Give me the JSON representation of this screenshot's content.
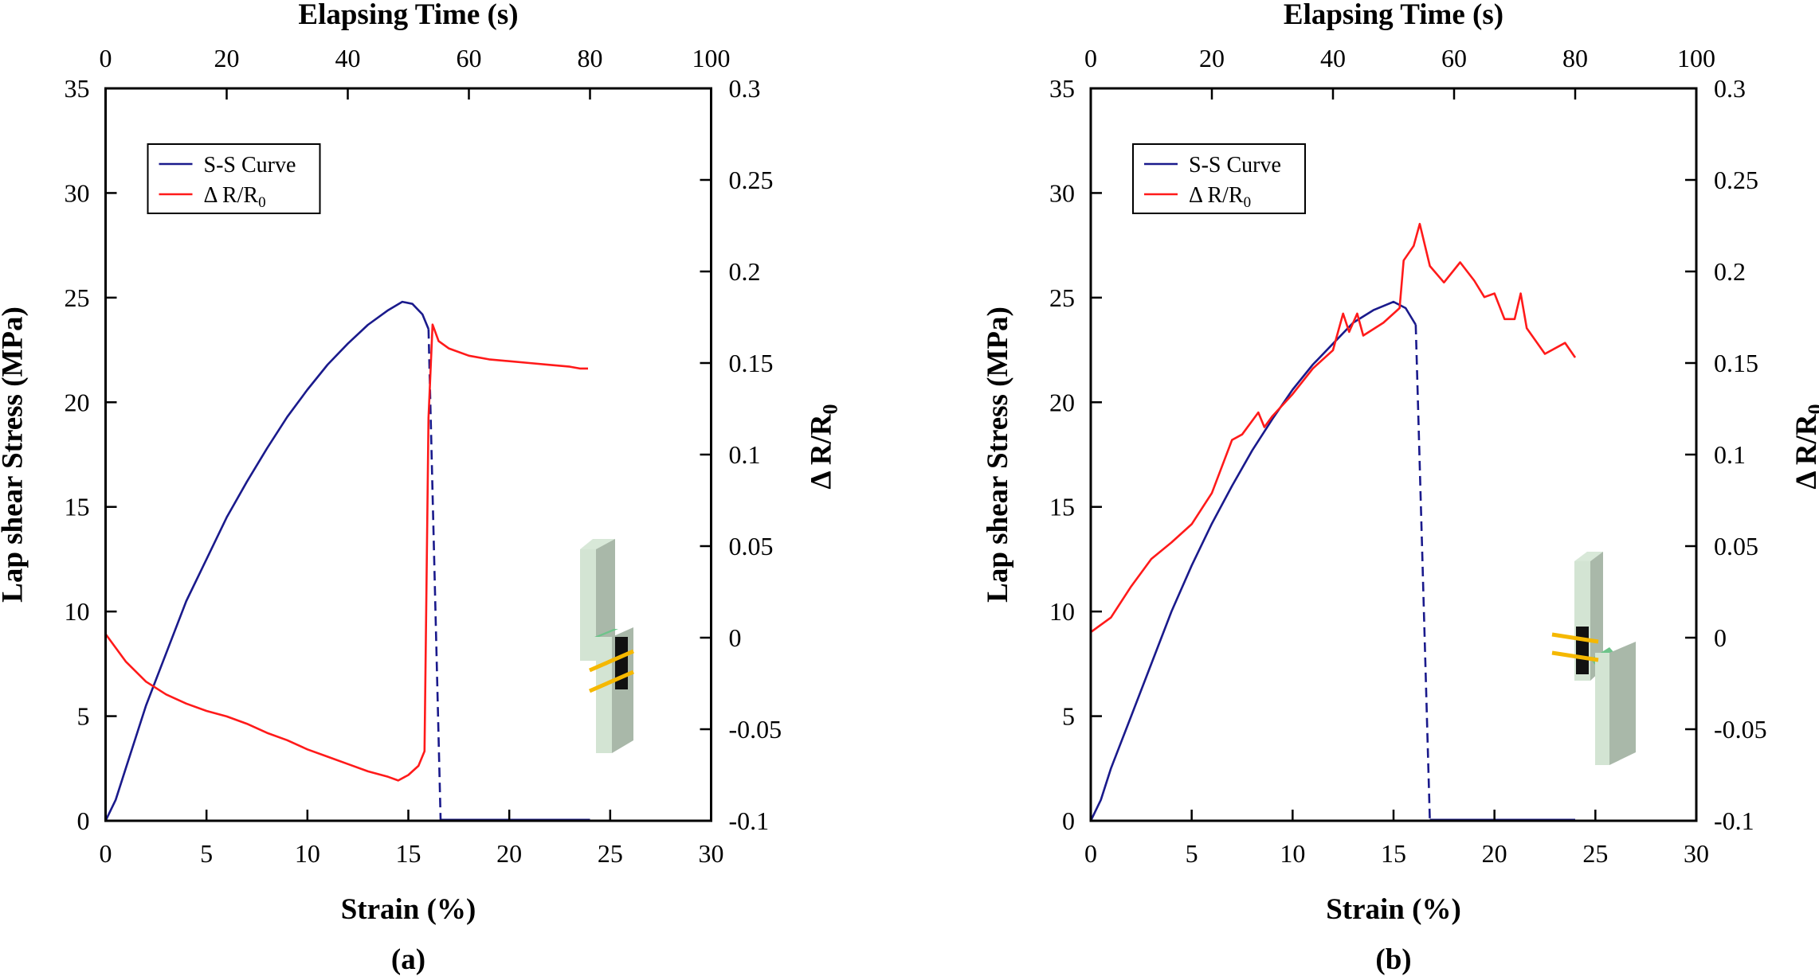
{
  "colors": {
    "ss_curve": "#1a1a8c",
    "resistance": "#ff1a1a",
    "axis": "#000000"
  },
  "chart_data": [
    {
      "type": "line",
      "panel_label": "(a)",
      "xlabel": "Strain (%)",
      "x2label": "Elapsing Time (s)",
      "ylabel": "Lap shear Stress (MPa)",
      "y2label": "Δ R/R",
      "y2label_sub": "0",
      "xlim": [
        0,
        30
      ],
      "x2lim": [
        0,
        100
      ],
      "ylim": [
        0,
        35
      ],
      "y2lim": [
        -0.1,
        0.3
      ],
      "xticks": [
        "0",
        "5",
        "10",
        "15",
        "20",
        "25",
        "30"
      ],
      "x2ticks": [
        "0",
        "20",
        "40",
        "60",
        "80",
        "100"
      ],
      "yticks": [
        "0",
        "5",
        "10",
        "15",
        "20",
        "25",
        "30",
        "35"
      ],
      "y2ticks": [
        "-0.1",
        "-0.05",
        "0",
        "0.05",
        "0.1",
        "0.15",
        "0.2",
        "0.25",
        "0.3"
      ],
      "legend": {
        "placement": "top-left",
        "entries": [
          "S-S Curve",
          "Δ R/R"
        ],
        "entry2_sub": "0"
      },
      "grid": false,
      "series": [
        {
          "name": "S-S Curve",
          "axis": "left",
          "x": [
            0,
            0.5,
            1,
            1.5,
            2,
            3,
            4,
            5,
            6,
            7,
            8,
            9,
            10,
            11,
            12,
            13,
            14,
            14.7,
            15.2,
            15.7,
            16
          ],
          "y": [
            0,
            1,
            2.5,
            4,
            5.5,
            8,
            10.5,
            12.5,
            14.5,
            16.2,
            17.8,
            19.3,
            20.6,
            21.8,
            22.8,
            23.7,
            24.4,
            24.8,
            24.7,
            24.2,
            23.5
          ],
          "dashed_drop": {
            "x": [
              16,
              16.6
            ],
            "y": [
              23.5,
              0
            ]
          },
          "post_failure": {
            "x": [
              16.6,
              24
            ],
            "y": [
              0,
              0
            ]
          }
        },
        {
          "name": "Δ R/R0",
          "axis": "right",
          "x": [
            0,
            1,
            2,
            3,
            4,
            5,
            6,
            7,
            8,
            9,
            10,
            11,
            12,
            13,
            14,
            14.5,
            15,
            15.5,
            15.8,
            16.0,
            16.2,
            16.5,
            17,
            18,
            19,
            20,
            21,
            22,
            23,
            23.5,
            23.9
          ],
          "y": [
            0.002,
            -0.013,
            -0.024,
            -0.031,
            -0.036,
            -0.04,
            -0.043,
            -0.047,
            -0.052,
            -0.056,
            -0.061,
            -0.065,
            -0.069,
            -0.073,
            -0.076,
            -0.078,
            -0.075,
            -0.07,
            -0.062,
            0.12,
            0.171,
            0.162,
            0.158,
            0.154,
            0.152,
            0.151,
            0.15,
            0.149,
            0.148,
            0.147,
            0.147
          ]
        }
      ]
    },
    {
      "type": "line",
      "panel_label": "(b)",
      "xlabel": "Strain (%)",
      "x2label": "Elapsing Time (s)",
      "ylabel": "Lap shear Stress (MPa)",
      "y2label": "Δ R/R",
      "y2label_sub": "0",
      "xlim": [
        0,
        30
      ],
      "x2lim": [
        0,
        100
      ],
      "ylim": [
        0,
        35
      ],
      "y2lim": [
        -0.1,
        0.3
      ],
      "xticks": [
        "0",
        "5",
        "10",
        "15",
        "20",
        "25",
        "30"
      ],
      "x2ticks": [
        "0",
        "20",
        "40",
        "60",
        "80",
        "100"
      ],
      "yticks": [
        "0",
        "5",
        "10",
        "15",
        "20",
        "25",
        "30",
        "35"
      ],
      "y2ticks": [
        "-0.1",
        "-0.05",
        "0",
        "0.05",
        "0.1",
        "0.15",
        "0.2",
        "0.25",
        "0.3"
      ],
      "legend": {
        "placement": "top-left",
        "entries": [
          "S-S Curve",
          "Δ R/R"
        ],
        "entry2_sub": "0"
      },
      "grid": false,
      "series": [
        {
          "name": "S-S Curve",
          "axis": "left",
          "x": [
            0,
            0.5,
            1,
            2,
            3,
            4,
            5,
            6,
            7,
            8,
            9,
            10,
            11,
            12,
            13,
            14,
            15,
            15.6,
            16.1
          ],
          "y": [
            0,
            1,
            2.5,
            5,
            7.5,
            10,
            12.2,
            14.2,
            16,
            17.7,
            19.2,
            20.6,
            21.8,
            22.8,
            23.8,
            24.4,
            24.8,
            24.5,
            23.7
          ],
          "dashed_drop": {
            "x": [
              16.1,
              16.8
            ],
            "y": [
              23.7,
              0
            ]
          },
          "post_failure": {
            "x": [
              16.8,
              24
            ],
            "y": [
              0,
              0
            ]
          }
        },
        {
          "name": "Δ R/R0",
          "axis": "right",
          "x": [
            0,
            1,
            2,
            3,
            4,
            5,
            6,
            7,
            7.5,
            8.3,
            8.6,
            9,
            10,
            11,
            12,
            12.5,
            12.8,
            13.2,
            13.5,
            14.5,
            15.3,
            15.5,
            16,
            16.3,
            16.8,
            17.5,
            18.3,
            19,
            19.5,
            20,
            20.5,
            21,
            21.3,
            21.6,
            22.5,
            23.5,
            24
          ],
          "y": [
            0.003,
            0.011,
            0.028,
            0.043,
            0.052,
            0.062,
            0.079,
            0.108,
            0.111,
            0.123,
            0.115,
            0.121,
            0.133,
            0.147,
            0.157,
            0.177,
            0.167,
            0.177,
            0.165,
            0.172,
            0.18,
            0.206,
            0.214,
            0.226,
            0.203,
            0.194,
            0.205,
            0.195,
            0.186,
            0.188,
            0.174,
            0.174,
            0.188,
            0.169,
            0.155,
            0.161,
            0.153
          ]
        }
      ]
    }
  ],
  "insets": [
    {
      "icon": "lap-joint-specimen-icon"
    },
    {
      "icon": "lap-joint-specimen-icon"
    }
  ]
}
